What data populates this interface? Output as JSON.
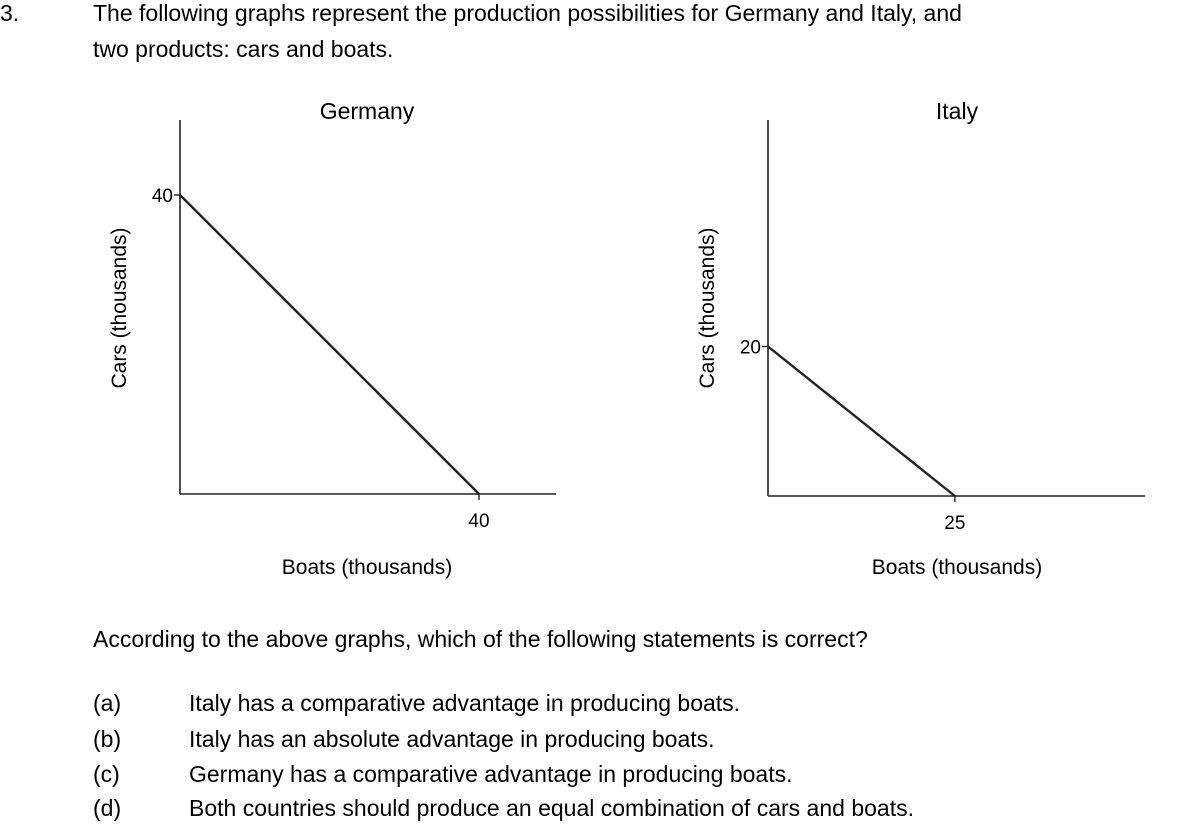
{
  "question": {
    "number": "3.",
    "intro_line1": "The following graphs represent the production possibilities for Germany and Italy, and",
    "intro_line2": "two products: cars and boats.",
    "prompt": "According to the above graphs, which of the following statements is correct?",
    "options": [
      {
        "letter": "(a)",
        "text": "Italy has a comparative advantage in producing boats."
      },
      {
        "letter": "(b)",
        "text": "Italy has an absolute advantage in producing boats."
      },
      {
        "letter": "(c)",
        "text": "Germany has a comparative advantage in producing boats."
      },
      {
        "letter": "(d)",
        "text": "Both countries should produce an equal combination of cars and boats."
      }
    ]
  },
  "chart_data": [
    {
      "type": "line",
      "title": "Germany",
      "xlabel": "Boats (thousands)",
      "ylabel": "Cars (thousands)",
      "x": [
        0,
        40
      ],
      "y": [
        40,
        0
      ],
      "xticks": [
        40
      ],
      "yticks": [
        40
      ],
      "xlim": [
        0,
        50
      ],
      "ylim": [
        0,
        50
      ],
      "grid": false,
      "legend": "none"
    },
    {
      "type": "line",
      "title": "Italy",
      "xlabel": "Boats (thousands)",
      "ylabel": "Cars (thousands)",
      "x": [
        0,
        25
      ],
      "y": [
        20,
        0
      ],
      "xticks": [
        25
      ],
      "yticks": [
        20
      ],
      "xlim": [
        0,
        50
      ],
      "ylim": [
        0,
        50
      ],
      "grid": false,
      "legend": "none"
    }
  ]
}
